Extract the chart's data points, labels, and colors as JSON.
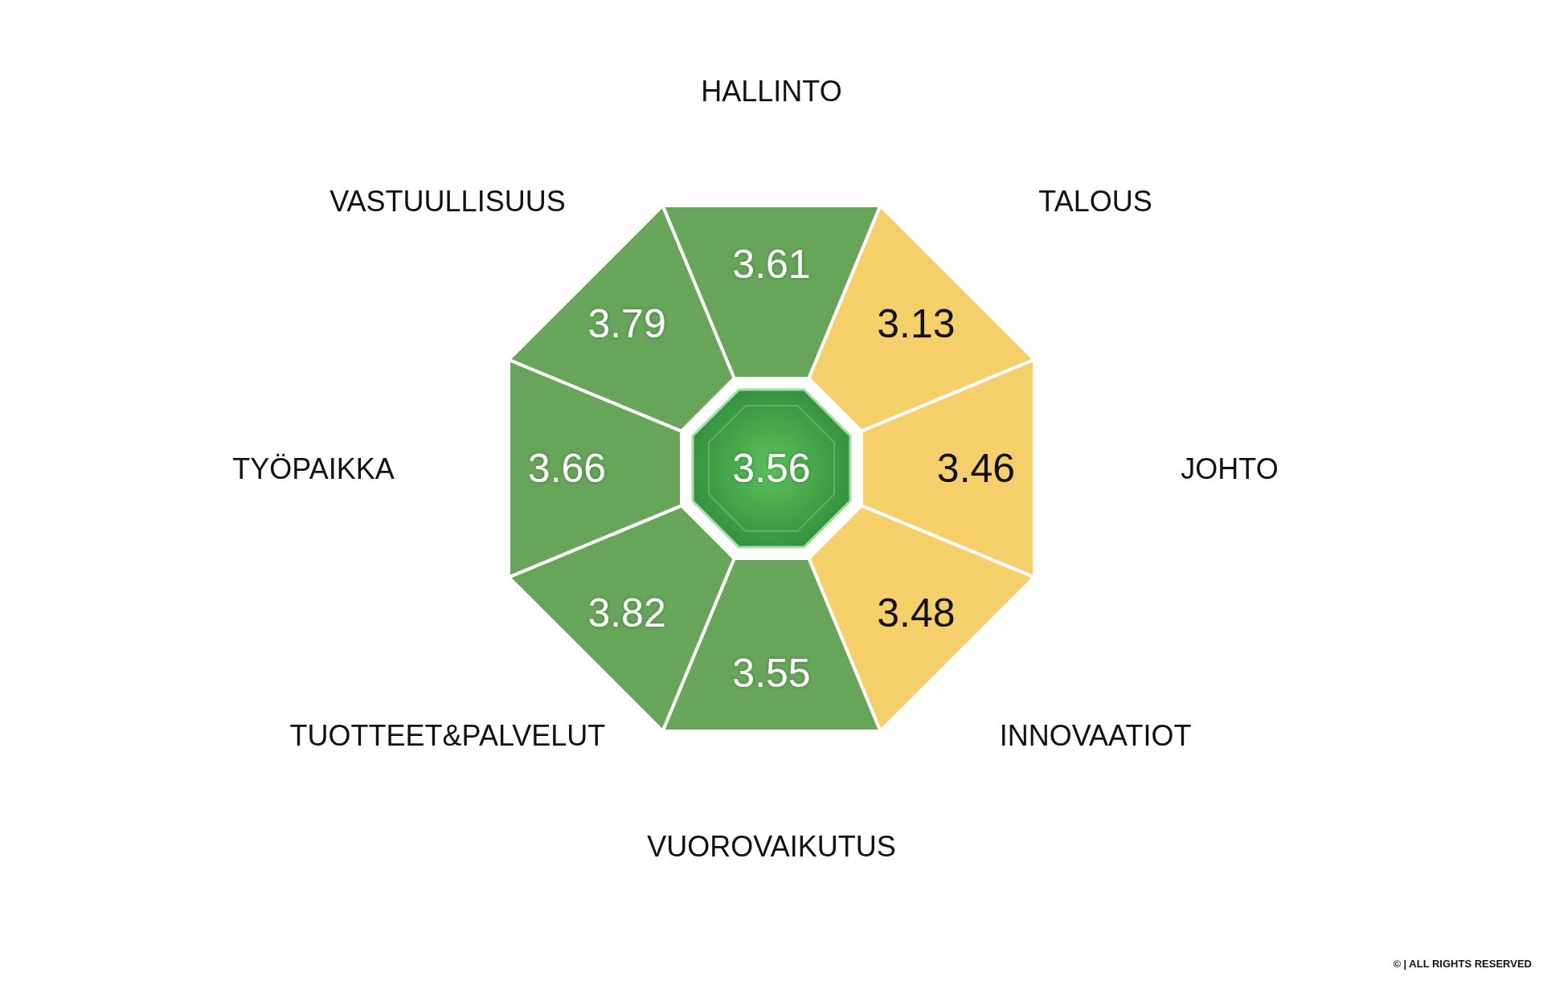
{
  "chart_data": {
    "type": "other",
    "categories": [
      "HALLINTO",
      "TALOUS",
      "JOHTO",
      "INNOVAATIOT",
      "VUOROVAIKUTUS",
      "TUOTTEET&PALVELUT",
      "TYÖPAIKKA",
      "VASTUULLISUUS"
    ],
    "values": [
      3.61,
      3.13,
      3.46,
      3.48,
      3.55,
      3.82,
      3.66,
      3.79
    ],
    "colors": [
      "#66a55a",
      "#f4cf6a",
      "#f4cf6a",
      "#f4cf6a",
      "#66a55a",
      "#66a55a",
      "#66a55a",
      "#66a55a"
    ],
    "data_labels": true,
    "annotations": [
      "3.56",
      "© | ALL RIGHTS RESERVED"
    ]
  }
}
